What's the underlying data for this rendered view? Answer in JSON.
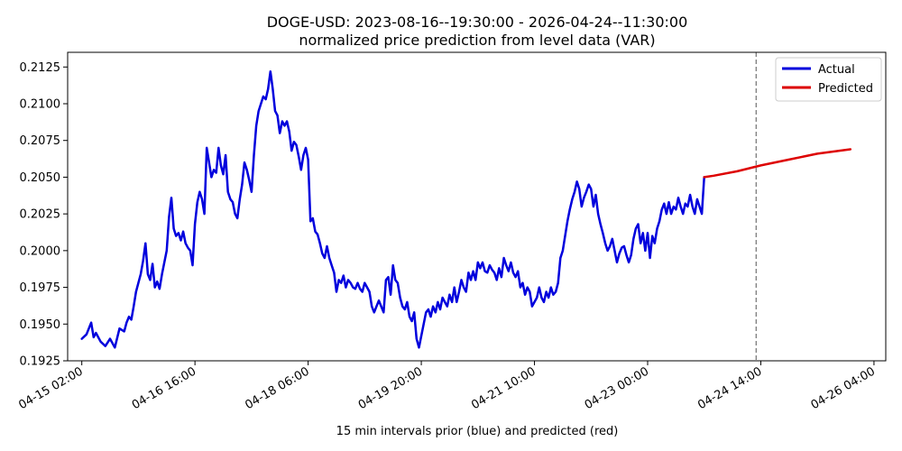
{
  "chart_data": {
    "type": "line",
    "title": "DOGE-USD: 2023-08-16--19:30:00 - 2026-04-24--11:30:00",
    "subtitle": "normalized price prediction from level data (VAR)",
    "xlabel": "15 min intervals prior (blue) and predicted (red)",
    "ylabel": "",
    "ylim": [
      0.1925,
      0.2135
    ],
    "xlim_hours": [
      -3,
      170.5
    ],
    "y_ticks": [
      {
        "value": 0.1925,
        "label": "0.1925"
      },
      {
        "value": 0.195,
        "label": "0.1950"
      },
      {
        "value": 0.1975,
        "label": "0.1975"
      },
      {
        "value": 0.2,
        "label": "0.2000"
      },
      {
        "value": 0.2025,
        "label": "0.2025"
      },
      {
        "value": 0.205,
        "label": "0.2050"
      },
      {
        "value": 0.2075,
        "label": "0.2075"
      },
      {
        "value": 0.21,
        "label": "0.2100"
      },
      {
        "value": 0.2125,
        "label": "0.2125"
      }
    ],
    "x_ticks": [
      {
        "hour": 0,
        "label": "04-15 02:00"
      },
      {
        "hour": 24,
        "label": "04-16 16:00"
      },
      {
        "hour": 48,
        "label": "04-18 06:00"
      },
      {
        "hour": 72,
        "label": "04-19 20:00"
      },
      {
        "hour": 96,
        "label": "04-21 10:00"
      },
      {
        "hour": 120,
        "label": "04-23 00:00"
      },
      {
        "hour": 144,
        "label": "04-24 14:00"
      },
      {
        "hour": 168,
        "label": "04-26 04:00"
      }
    ],
    "forecast_start_hour": 143,
    "legend": {
      "placement": "top-right"
    },
    "grid": false,
    "series": [
      {
        "name": "Actual",
        "color": "#0000dd",
        "points": [
          [
            0,
            0.194
          ],
          [
            1,
            0.1943
          ],
          [
            1.5,
            0.1947
          ],
          [
            2,
            0.1951
          ],
          [
            2.5,
            0.1941
          ],
          [
            3,
            0.1944
          ],
          [
            4,
            0.1938
          ],
          [
            5,
            0.1935
          ],
          [
            6,
            0.194
          ],
          [
            7,
            0.1934
          ],
          [
            8,
            0.1947
          ],
          [
            9,
            0.1945
          ],
          [
            9.5,
            0.1951
          ],
          [
            10,
            0.1955
          ],
          [
            10.5,
            0.1953
          ],
          [
            11,
            0.1962
          ],
          [
            11.5,
            0.1972
          ],
          [
            12,
            0.1978
          ],
          [
            12.5,
            0.1984
          ],
          [
            13,
            0.1993
          ],
          [
            13.5,
            0.2005
          ],
          [
            14,
            0.1984
          ],
          [
            14.5,
            0.198
          ],
          [
            15,
            0.1991
          ],
          [
            15.5,
            0.1975
          ],
          [
            16,
            0.1979
          ],
          [
            16.5,
            0.1974
          ],
          [
            17,
            0.1984
          ],
          [
            17.5,
            0.1992
          ],
          [
            18,
            0.2
          ],
          [
            18.5,
            0.2023
          ],
          [
            19,
            0.2036
          ],
          [
            19.5,
            0.2015
          ],
          [
            20,
            0.201
          ],
          [
            20.5,
            0.2012
          ],
          [
            21,
            0.2007
          ],
          [
            21.5,
            0.2013
          ],
          [
            22,
            0.2005
          ],
          [
            22.5,
            0.2002
          ],
          [
            23,
            0.2
          ],
          [
            23.5,
            0.199
          ],
          [
            24,
            0.2018
          ],
          [
            24.5,
            0.2033
          ],
          [
            25,
            0.204
          ],
          [
            25.5,
            0.2035
          ],
          [
            26,
            0.2025
          ],
          [
            26.5,
            0.207
          ],
          [
            27,
            0.206
          ],
          [
            27.5,
            0.205
          ],
          [
            28,
            0.2055
          ],
          [
            28.5,
            0.2053
          ],
          [
            29,
            0.207
          ],
          [
            29.5,
            0.2058
          ],
          [
            30,
            0.2052
          ],
          [
            30.5,
            0.2065
          ],
          [
            31,
            0.204
          ],
          [
            31.5,
            0.2035
          ],
          [
            32,
            0.2033
          ],
          [
            32.5,
            0.2025
          ],
          [
            33,
            0.2022
          ],
          [
            33.5,
            0.2035
          ],
          [
            34,
            0.2045
          ],
          [
            34.5,
            0.206
          ],
          [
            35,
            0.2055
          ],
          [
            35.5,
            0.2048
          ],
          [
            36,
            0.204
          ],
          [
            36.5,
            0.2065
          ],
          [
            37,
            0.2085
          ],
          [
            37.5,
            0.2095
          ],
          [
            38,
            0.21
          ],
          [
            38.5,
            0.2105
          ],
          [
            39,
            0.2103
          ],
          [
            39.5,
            0.211
          ],
          [
            40,
            0.2122
          ],
          [
            40.5,
            0.211
          ],
          [
            41,
            0.2095
          ],
          [
            41.5,
            0.2092
          ],
          [
            42,
            0.208
          ],
          [
            42.5,
            0.2088
          ],
          [
            43,
            0.2085
          ],
          [
            43.5,
            0.2088
          ],
          [
            44,
            0.2081
          ],
          [
            44.5,
            0.2068
          ],
          [
            45,
            0.2074
          ],
          [
            45.5,
            0.2072
          ],
          [
            46,
            0.2064
          ],
          [
            46.5,
            0.2055
          ],
          [
            47,
            0.2065
          ],
          [
            47.5,
            0.207
          ],
          [
            48,
            0.2062
          ],
          [
            48.5,
            0.202
          ],
          [
            49,
            0.2022
          ],
          [
            49.5,
            0.2013
          ],
          [
            50,
            0.2011
          ],
          [
            50.5,
            0.2005
          ],
          [
            51,
            0.1998
          ],
          [
            51.5,
            0.1995
          ],
          [
            52,
            0.2003
          ],
          [
            52.5,
            0.1995
          ],
          [
            53,
            0.199
          ],
          [
            53.5,
            0.1985
          ],
          [
            54,
            0.1972
          ],
          [
            54.5,
            0.198
          ],
          [
            55,
            0.1978
          ],
          [
            55.5,
            0.1983
          ],
          [
            56,
            0.1975
          ],
          [
            56.5,
            0.198
          ],
          [
            57,
            0.1978
          ],
          [
            57.5,
            0.1975
          ],
          [
            58,
            0.1974
          ],
          [
            58.5,
            0.1978
          ],
          [
            59,
            0.1974
          ],
          [
            59.5,
            0.1972
          ],
          [
            60,
            0.1978
          ],
          [
            60.5,
            0.1975
          ],
          [
            61,
            0.1972
          ],
          [
            61.5,
            0.1962
          ],
          [
            62,
            0.1958
          ],
          [
            62.5,
            0.1962
          ],
          [
            63,
            0.1966
          ],
          [
            63.5,
            0.1962
          ],
          [
            64,
            0.1958
          ],
          [
            64.5,
            0.198
          ],
          [
            65,
            0.1982
          ],
          [
            65.5,
            0.197
          ],
          [
            66,
            0.199
          ],
          [
            66.5,
            0.198
          ],
          [
            67,
            0.1978
          ],
          [
            67.5,
            0.1968
          ],
          [
            68,
            0.1962
          ],
          [
            68.5,
            0.196
          ],
          [
            69,
            0.1965
          ],
          [
            69.5,
            0.1955
          ],
          [
            70,
            0.1952
          ],
          [
            70.5,
            0.1958
          ],
          [
            71,
            0.194
          ],
          [
            71.5,
            0.1934
          ],
          [
            72,
            0.1942
          ],
          [
            72.5,
            0.195
          ],
          [
            73,
            0.1958
          ],
          [
            73.5,
            0.196
          ],
          [
            74,
            0.1955
          ],
          [
            74.5,
            0.1962
          ],
          [
            75,
            0.1958
          ],
          [
            75.5,
            0.1965
          ],
          [
            76,
            0.196
          ],
          [
            76.5,
            0.1968
          ],
          [
            77,
            0.1965
          ],
          [
            77.5,
            0.1962
          ],
          [
            78,
            0.197
          ],
          [
            78.5,
            0.1965
          ],
          [
            79,
            0.1975
          ],
          [
            79.5,
            0.1965
          ],
          [
            80,
            0.1972
          ],
          [
            80.5,
            0.198
          ],
          [
            81,
            0.1975
          ],
          [
            81.5,
            0.1972
          ],
          [
            82,
            0.1985
          ],
          [
            82.5,
            0.198
          ],
          [
            83,
            0.1986
          ],
          [
            83.5,
            0.198
          ],
          [
            84,
            0.1992
          ],
          [
            84.5,
            0.1988
          ],
          [
            85,
            0.1992
          ],
          [
            85.5,
            0.1986
          ],
          [
            86,
            0.1985
          ],
          [
            86.5,
            0.199
          ],
          [
            87,
            0.1987
          ],
          [
            87.5,
            0.1985
          ],
          [
            88,
            0.198
          ],
          [
            88.5,
            0.1988
          ],
          [
            89,
            0.1982
          ],
          [
            89.5,
            0.1995
          ],
          [
            90,
            0.199
          ],
          [
            90.5,
            0.1986
          ],
          [
            91,
            0.1992
          ],
          [
            91.5,
            0.1985
          ],
          [
            92,
            0.1982
          ],
          [
            92.5,
            0.1986
          ],
          [
            93,
            0.1975
          ],
          [
            93.5,
            0.1978
          ],
          [
            94,
            0.197
          ],
          [
            94.5,
            0.1975
          ],
          [
            95,
            0.1972
          ],
          [
            95.5,
            0.1962
          ],
          [
            96,
            0.1965
          ],
          [
            96.5,
            0.1968
          ],
          [
            97,
            0.1975
          ],
          [
            97.5,
            0.1968
          ],
          [
            98,
            0.1965
          ],
          [
            98.5,
            0.1972
          ],
          [
            99,
            0.1968
          ],
          [
            99.5,
            0.1975
          ],
          [
            100,
            0.197
          ],
          [
            100.5,
            0.1972
          ],
          [
            101,
            0.1978
          ],
          [
            101.5,
            0.1995
          ],
          [
            102,
            0.2
          ],
          [
            102.5,
            0.201
          ],
          [
            103,
            0.202
          ],
          [
            103.5,
            0.2028
          ],
          [
            104,
            0.2035
          ],
          [
            104.5,
            0.204
          ],
          [
            105,
            0.2047
          ],
          [
            105.5,
            0.2042
          ],
          [
            106,
            0.203
          ],
          [
            106.5,
            0.2036
          ],
          [
            107,
            0.204
          ],
          [
            107.5,
            0.2045
          ],
          [
            108,
            0.2042
          ],
          [
            108.5,
            0.203
          ],
          [
            109,
            0.2038
          ],
          [
            109.5,
            0.2025
          ],
          [
            110,
            0.2018
          ],
          [
            110.5,
            0.2012
          ],
          [
            111,
            0.2005
          ],
          [
            111.5,
            0.2
          ],
          [
            112,
            0.2003
          ],
          [
            112.5,
            0.2008
          ],
          [
            113,
            0.2
          ],
          [
            113.5,
            0.1992
          ],
          [
            114,
            0.1998
          ],
          [
            114.5,
            0.2002
          ],
          [
            115,
            0.2003
          ],
          [
            115.5,
            0.1997
          ],
          [
            116,
            0.1992
          ],
          [
            116.5,
            0.1997
          ],
          [
            117,
            0.2008
          ],
          [
            117.5,
            0.2015
          ],
          [
            118,
            0.2018
          ],
          [
            118.5,
            0.2005
          ],
          [
            119,
            0.2012
          ],
          [
            119.5,
            0.2
          ],
          [
            120,
            0.2012
          ],
          [
            120.5,
            0.1995
          ],
          [
            121,
            0.201
          ],
          [
            121.5,
            0.2005
          ],
          [
            122,
            0.2015
          ],
          [
            122.5,
            0.202
          ],
          [
            123,
            0.2028
          ],
          [
            123.5,
            0.2032
          ],
          [
            124,
            0.2025
          ],
          [
            124.5,
            0.2033
          ],
          [
            125,
            0.2025
          ],
          [
            125.5,
            0.203
          ],
          [
            126,
            0.2028
          ],
          [
            126.5,
            0.2036
          ],
          [
            127,
            0.203
          ],
          [
            127.5,
            0.2025
          ],
          [
            128,
            0.2032
          ],
          [
            128.5,
            0.203
          ],
          [
            129,
            0.2038
          ],
          [
            129.5,
            0.203
          ],
          [
            130,
            0.2025
          ],
          [
            130.5,
            0.2035
          ],
          [
            131,
            0.203
          ],
          [
            131.5,
            0.2025
          ],
          [
            132,
            0.205
          ]
        ]
      },
      {
        "name": "Predicted",
        "color": "#dd0000",
        "points": [
          [
            132,
            0.205
          ],
          [
            134,
            0.2051
          ],
          [
            139,
            0.2054
          ],
          [
            144,
            0.2058
          ],
          [
            150,
            0.2062
          ],
          [
            156,
            0.2066
          ],
          [
            163,
            0.2069
          ]
        ]
      }
    ]
  }
}
